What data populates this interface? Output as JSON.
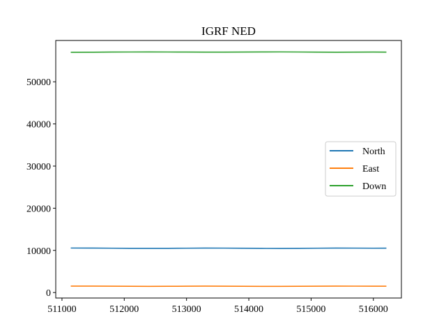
{
  "chart_data": {
    "type": "line",
    "title": "IGRF NED",
    "xlabel": "",
    "ylabel": "",
    "xlim": [
      510900,
      516450
    ],
    "ylim": [
      -1300,
      59800
    ],
    "x_ticks": [
      511000,
      512000,
      513000,
      514000,
      515000,
      516000
    ],
    "y_ticks": [
      0,
      10000,
      20000,
      30000,
      40000,
      50000
    ],
    "grid": false,
    "legend_position": "center-right",
    "x": [
      511150,
      511500,
      511800,
      512100,
      512400,
      512700,
      513000,
      513300,
      513600,
      513900,
      514200,
      514500,
      514800,
      515100,
      515400,
      515700,
      516000,
      516200
    ],
    "series": [
      {
        "name": "North",
        "color": "#1f77b4",
        "values": [
          10560,
          10550,
          10520,
          10490,
          10480,
          10490,
          10520,
          10550,
          10540,
          10510,
          10480,
          10470,
          10490,
          10520,
          10550,
          10540,
          10520,
          10530
        ]
      },
      {
        "name": "East",
        "color": "#ff7f0e",
        "values": [
          1530,
          1520,
          1500,
          1480,
          1470,
          1480,
          1500,
          1520,
          1510,
          1490,
          1470,
          1465,
          1480,
          1500,
          1520,
          1515,
          1505,
          1510
        ]
      },
      {
        "name": "Down",
        "color": "#2ca02c",
        "values": [
          57000,
          57020,
          57050,
          57070,
          57080,
          57070,
          57050,
          57030,
          57040,
          57060,
          57080,
          57090,
          57070,
          57040,
          57020,
          57030,
          57050,
          57040
        ]
      }
    ]
  }
}
